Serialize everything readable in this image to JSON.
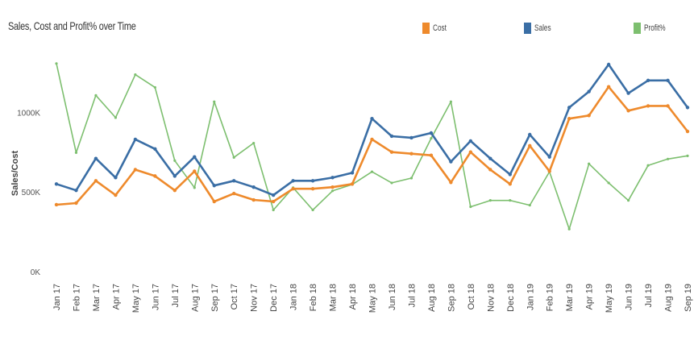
{
  "chart_data": {
    "type": "line",
    "title": "Sales, Cost and Profit% over Time",
    "ylabel": "Sales/Cost",
    "xlabel": "",
    "ylim": [
      0,
      1300000
    ],
    "yticks": [
      {
        "value": 0,
        "label": "0K"
      },
      {
        "value": 500000,
        "label": "500K"
      },
      {
        "value": 1000000,
        "label": "1000K"
      }
    ],
    "categories": [
      "Jan 17",
      "Feb 17",
      "Mar 17",
      "Apr 17",
      "May 17",
      "Jun 17",
      "Jul 17",
      "Aug 17",
      "Sep 17",
      "Oct 17",
      "Nov 17",
      "Dec 17",
      "Jan 18",
      "Feb 18",
      "Mar 18",
      "Apr 18",
      "May 18",
      "Jun 18",
      "Jul 18",
      "Aug 18",
      "Sep 18",
      "Oct 18",
      "Nov 18",
      "Dec 18",
      "Jan 19",
      "Feb 19",
      "Mar 19",
      "Apr 19",
      "May 19",
      "Jun 19",
      "Jul 19",
      "Aug 19",
      "Sep 19"
    ],
    "series": [
      {
        "name": "Cost",
        "color": "#ee8a2c",
        "axis": "left",
        "values": [
          420000,
          430000,
          570000,
          480000,
          640000,
          600000,
          510000,
          630000,
          440000,
          490000,
          450000,
          440000,
          520000,
          520000,
          530000,
          550000,
          830000,
          750000,
          740000,
          730000,
          560000,
          750000,
          640000,
          550000,
          790000,
          630000,
          960000,
          980000,
          1160000,
          1010000,
          1040000,
          1040000,
          880000
        ]
      },
      {
        "name": "Sales",
        "color": "#3a6ea5",
        "axis": "left",
        "values": [
          550000,
          510000,
          710000,
          590000,
          830000,
          770000,
          600000,
          720000,
          540000,
          570000,
          530000,
          480000,
          570000,
          570000,
          590000,
          620000,
          960000,
          850000,
          840000,
          870000,
          690000,
          820000,
          710000,
          610000,
          860000,
          720000,
          1030000,
          1130000,
          1300000,
          1120000,
          1200000,
          1200000,
          1030000
        ]
      },
      {
        "name": "Profit%",
        "color": "#7dbf6f",
        "axis": "right",
        "values": [
          0.92,
          0.36,
          0.72,
          0.58,
          0.85,
          0.77,
          0.31,
          0.14,
          0.68,
          0.33,
          0.42,
          0.0,
          0.14,
          0.0,
          0.12,
          0.16,
          0.24,
          0.17,
          0.2,
          0.45,
          0.68,
          0.02,
          0.06,
          0.06,
          0.03,
          0.24,
          -0.12,
          0.29,
          0.17,
          0.06,
          0.28,
          0.32,
          0.34
        ]
      }
    ],
    "legend": "top-right",
    "grid": false
  }
}
